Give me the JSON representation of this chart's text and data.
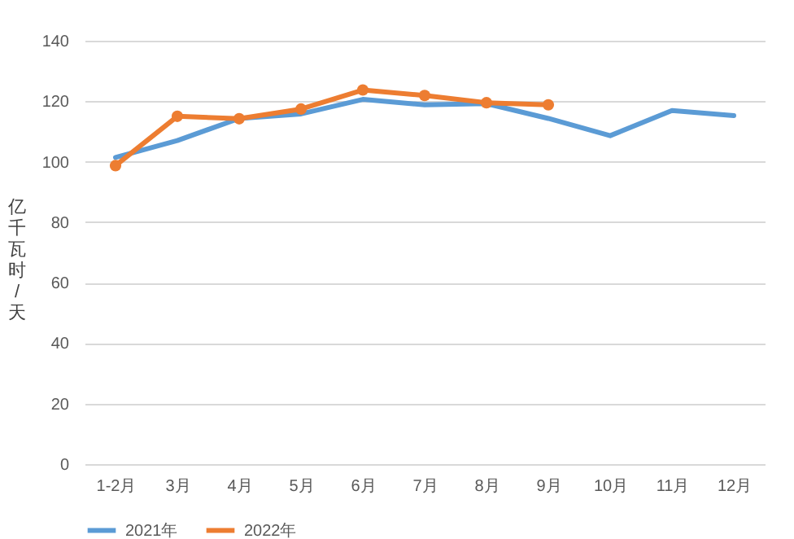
{
  "chart_data": {
    "type": "line",
    "ylabel": "亿千瓦时/天",
    "categories": [
      "1-2月",
      "3月",
      "4月",
      "5月",
      "6月",
      "7月",
      "8月",
      "9月",
      "10月",
      "11月",
      "12月"
    ],
    "series": [
      {
        "name": "2021年",
        "color": "#5b9bd5",
        "marker": "none",
        "values": [
          101.4,
          107,
          114.3,
          115.8,
          120.6,
          118.8,
          119.2,
          114.3,
          108.6,
          116.9,
          115.2
        ]
      },
      {
        "name": "2022年",
        "color": "#ed7d31",
        "marker": "circle",
        "values": [
          98.7,
          115,
          114.2,
          117.4,
          123.7,
          121.9,
          119.5,
          118.8,
          null,
          null,
          null
        ]
      }
    ],
    "ylim": [
      0,
      140
    ],
    "yticks": [
      0,
      20,
      40,
      60,
      80,
      100,
      120,
      140
    ],
    "grid": "y",
    "legend": "bottom"
  }
}
